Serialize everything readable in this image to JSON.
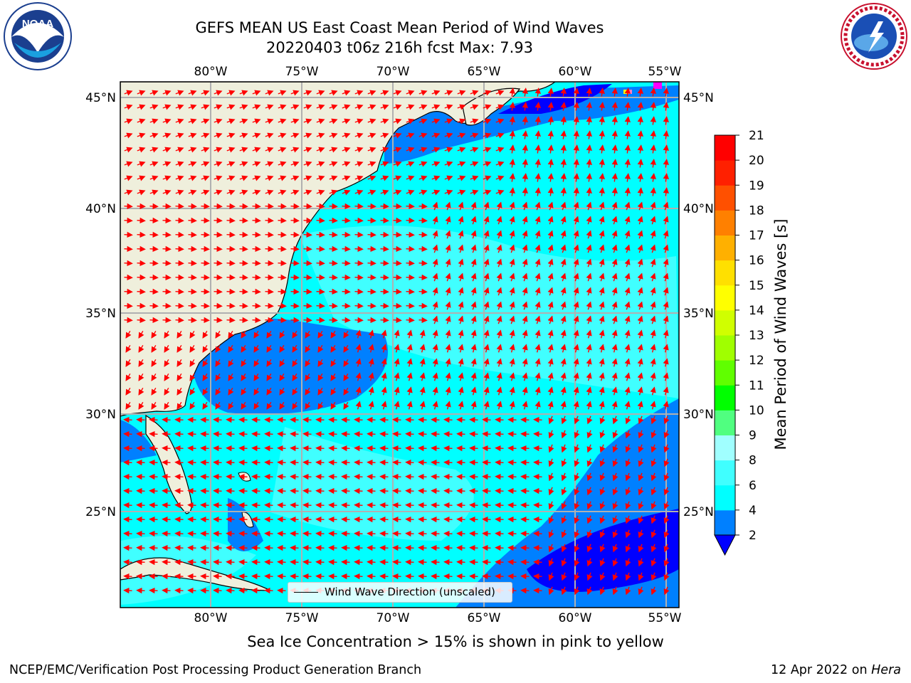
{
  "header": {
    "title_line1": "GEFS MEAN US East Coast Mean Period of Wind Waves",
    "title_line2": "20220403 t06z 216h fcst   Max: 7.93"
  },
  "logos": {
    "left": {
      "icon": "noaa-logo",
      "text": "NOAA",
      "ring_text": "NATIONAL OCEANIC AND ATMOSPHERIC ADMINISTRATION · U.S. DEPARTMENT OF COMMERCE"
    },
    "right": {
      "icon": "nws-logo",
      "ring_text": "NATIONAL WEATHER SERVICE"
    }
  },
  "map": {
    "longitude_ticks": [
      "80°W",
      "75°W",
      "70°W",
      "65°W",
      "60°W",
      "55°W"
    ],
    "latitude_ticks_left": [
      "45°N",
      "40°N",
      "35°N",
      "30°N",
      "25°N"
    ],
    "latitude_ticks_right": [
      "45°N",
      "40°N",
      "35°N",
      "30°N",
      "25°N"
    ],
    "land_color": "#efefdc",
    "ocean_color": "#00ffff",
    "arrow_color": "#ff0000",
    "legend": {
      "label": "Wind Wave Direction (unscaled)"
    }
  },
  "colorbar": {
    "label": "Mean Period of Wind Waves [s]",
    "ticks": [
      "2",
      "4",
      "6",
      "8",
      "9",
      "10",
      "11",
      "12",
      "13",
      "14",
      "15",
      "16",
      "17",
      "18",
      "19",
      "20",
      "21"
    ],
    "colors": [
      "#0000ff",
      "#0080ff",
      "#00ffff",
      "#40ffff",
      "#a0ffff",
      "#50ff80",
      "#00ff00",
      "#60ff00",
      "#a0ff00",
      "#d0ff00",
      "#ffff00",
      "#ffe000",
      "#ffb000",
      "#ff8000",
      "#ff5000",
      "#ff2000",
      "#ff0000"
    ],
    "extend_color": "#0000ff"
  },
  "footer": {
    "sea_ice_note": "Sea Ice Concentration > 15% is shown in pink to yellow",
    "credit": "NCEP/EMC/Verification Post Processing Product Generation Branch",
    "date": "12 Apr 2022 on",
    "machine": "Hera"
  }
}
